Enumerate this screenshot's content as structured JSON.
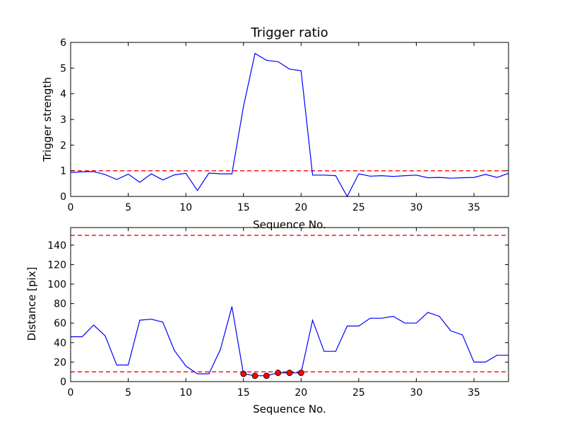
{
  "chart_data": [
    {
      "type": "line",
      "title": "Trigger ratio",
      "xlabel": "Sequence No.",
      "ylabel": "Trigger strength",
      "xlim": [
        0,
        38
      ],
      "ylim": [
        0,
        6
      ],
      "xticks": [
        0,
        5,
        10,
        15,
        20,
        25,
        30,
        35
      ],
      "yticks": [
        0,
        1,
        2,
        3,
        4,
        5,
        6
      ],
      "grid": false,
      "series": [
        {
          "color": "#0000ff",
          "style": "solid",
          "x": [
            0,
            1,
            2,
            3,
            4,
            5,
            6,
            7,
            8,
            9,
            10,
            11,
            12,
            13,
            14,
            15,
            16,
            17,
            18,
            19,
            20,
            21,
            22,
            23,
            24,
            25,
            26,
            27,
            28,
            29,
            30,
            31,
            32,
            33,
            34,
            35,
            36,
            37,
            38
          ],
          "y": [
            0.93,
            0.96,
            0.97,
            0.85,
            0.66,
            0.87,
            0.55,
            0.88,
            0.64,
            0.84,
            0.9,
            0.23,
            0.91,
            0.88,
            0.88,
            3.5,
            5.57,
            5.3,
            5.25,
            4.96,
            4.9,
            0.83,
            0.83,
            0.81,
            0.0,
            0.88,
            0.79,
            0.81,
            0.78,
            0.81,
            0.83,
            0.73,
            0.74,
            0.71,
            0.73,
            0.74,
            0.86,
            0.74,
            0.9
          ]
        }
      ],
      "hlines": [
        {
          "y": 1,
          "color": "#ff0000",
          "style": "dashed"
        }
      ]
    },
    {
      "type": "line",
      "title": "",
      "xlabel": "Sequence No.",
      "ylabel": "Distance [pix]",
      "xlim": [
        0,
        38
      ],
      "ylim": [
        0,
        158
      ],
      "xticks": [
        0,
        5,
        10,
        15,
        20,
        25,
        30,
        35
      ],
      "yticks": [
        0,
        20,
        40,
        60,
        80,
        100,
        120,
        140
      ],
      "grid": false,
      "series": [
        {
          "color": "#0000ff",
          "style": "solid",
          "x": [
            0,
            1,
            2,
            3,
            4,
            5,
            6,
            7,
            8,
            9,
            10,
            11,
            12,
            13,
            14,
            15,
            16,
            17,
            18,
            19,
            20,
            21,
            22,
            23,
            24,
            25,
            26,
            27,
            28,
            29,
            30,
            31,
            32,
            33,
            34,
            35,
            36,
            37,
            38
          ],
          "y": [
            46,
            46,
            58,
            47,
            17,
            17,
            63,
            64,
            61,
            32,
            16,
            8,
            8,
            33,
            77,
            8,
            6,
            6,
            9,
            9,
            9,
            63,
            31,
            31,
            57,
            57,
            65,
            65,
            67,
            60,
            60,
            71,
            67,
            52,
            48,
            20,
            20,
            27,
            27
          ]
        }
      ],
      "markers": {
        "color": "#ff0000",
        "edge": "#000000",
        "x": [
          15,
          16,
          17,
          18,
          19,
          20
        ],
        "y": [
          8,
          6,
          6,
          9,
          9,
          9
        ]
      },
      "hlines": [
        {
          "y": 150,
          "color": "#ff0000",
          "style": "dashed"
        },
        {
          "y": 10,
          "color": "#ff0000",
          "style": "dashed"
        }
      ]
    }
  ]
}
